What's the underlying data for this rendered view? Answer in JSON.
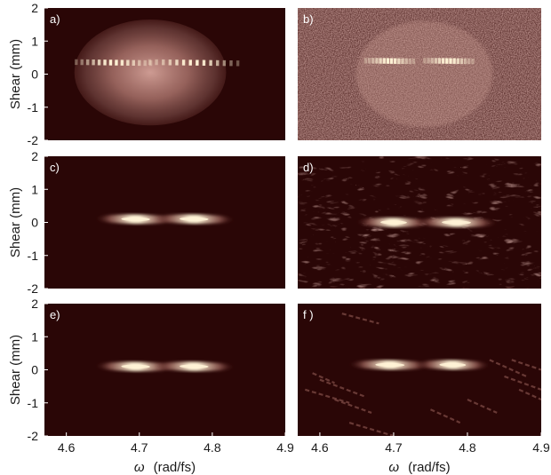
{
  "figure": {
    "ylabel": "Shear (mm)",
    "xlabel_symbol": "ω",
    "xlabel_units": "(rad/fs)",
    "colors": {
      "background": "#2a0606",
      "mid": "#8a4f4a",
      "peak": "#fff3d6",
      "noise": "#7a4845",
      "envelope": "#c8908a"
    }
  },
  "chart_data": [
    {
      "type": "heatmap",
      "panel_label": "a)",
      "description_kind": "ideal_with_envelope",
      "x_range": [
        4.57,
        4.9
      ],
      "y_range": [
        -2,
        2
      ],
      "xticks": [
        "4.6",
        "4.7",
        "4.8",
        "4.9"
      ],
      "yticks": [
        "2",
        "1",
        "0",
        "-1",
        "-2"
      ],
      "features": [
        {
          "x_center": 4.66,
          "y_center": 0.35,
          "slope_mm_per_radfs": -30,
          "extent_x": [
            4.61,
            4.72
          ],
          "fringed": true
        },
        {
          "x_center": 4.76,
          "y_center": 0.35,
          "slope_mm_per_radfs": -30,
          "extent_x": [
            4.71,
            4.84
          ],
          "fringed": true
        }
      ]
    },
    {
      "type": "heatmap",
      "panel_label": "b)",
      "description_kind": "noisy",
      "x_range": [
        4.57,
        4.9
      ],
      "y_range": [
        -2,
        2
      ],
      "xticks": [
        "4.6",
        "4.7",
        "4.8",
        "4.9"
      ],
      "yticks": [
        "2",
        "1",
        "0",
        "-1",
        "-2"
      ],
      "features": [
        {
          "x_center": 4.69,
          "y_center": 0.4,
          "slope_mm_per_radfs": -30,
          "extent_x": [
            4.66,
            4.73
          ],
          "fringed": true
        },
        {
          "x_center": 4.77,
          "y_center": 0.4,
          "slope_mm_per_radfs": -30,
          "extent_x": [
            4.74,
            4.81
          ],
          "fringed": true
        }
      ]
    },
    {
      "type": "heatmap",
      "panel_label": "c)",
      "description_kind": "reconstructed",
      "x_range": [
        4.57,
        4.9
      ],
      "y_range": [
        -2,
        2
      ],
      "xticks": [
        "4.6",
        "4.7",
        "4.8",
        "4.9"
      ],
      "yticks": [
        "2",
        "1",
        "0",
        "-1",
        "-2"
      ],
      "features": [
        {
          "x_center": 4.69,
          "y_center": 0.1,
          "slope_mm_per_radfs": -30,
          "extent_x": [
            4.64,
            4.75
          ],
          "fringed": false
        },
        {
          "x_center": 4.78,
          "y_center": 0.1,
          "slope_mm_per_radfs": -30,
          "extent_x": [
            4.72,
            4.83
          ],
          "fringed": false
        }
      ]
    },
    {
      "type": "heatmap",
      "panel_label": "d)",
      "description_kind": "reconstructed_noisy",
      "x_range": [
        4.57,
        4.9
      ],
      "y_range": [
        -2,
        2
      ],
      "xticks": [
        "4.6",
        "4.7",
        "4.8",
        "4.9"
      ],
      "yticks": [
        "2",
        "1",
        "0",
        "-1",
        "-2"
      ],
      "features": [
        {
          "x_center": 4.7,
          "y_center": 0.0,
          "slope_mm_per_radfs": -30,
          "extent_x": [
            4.65,
            4.75
          ],
          "fringed": false
        },
        {
          "x_center": 4.78,
          "y_center": 0.0,
          "slope_mm_per_radfs": -30,
          "extent_x": [
            4.73,
            4.84
          ],
          "fringed": false
        }
      ]
    },
    {
      "type": "heatmap",
      "panel_label": "e)",
      "description_kind": "reconstructed",
      "x_range": [
        4.57,
        4.9
      ],
      "y_range": [
        -2,
        2
      ],
      "xticks": [
        "4.6",
        "4.7",
        "4.8",
        "4.9"
      ],
      "yticks": [
        "2",
        "1",
        "0",
        "-1",
        "-2"
      ],
      "features": [
        {
          "x_center": 4.69,
          "y_center": 0.1,
          "slope_mm_per_radfs": -30,
          "extent_x": [
            4.64,
            4.75
          ],
          "fringed": false
        },
        {
          "x_center": 4.78,
          "y_center": 0.1,
          "slope_mm_per_radfs": -30,
          "extent_x": [
            4.72,
            4.83
          ],
          "fringed": false
        }
      ]
    },
    {
      "type": "heatmap",
      "panel_label": "f )",
      "description_kind": "reconstructed_artifacts",
      "x_range": [
        4.57,
        4.9
      ],
      "y_range": [
        -2,
        2
      ],
      "xticks": [
        "4.6",
        "4.7",
        "4.8",
        "4.9"
      ],
      "yticks": [
        "2",
        "1",
        "0",
        "-1",
        "-2"
      ],
      "features": [
        {
          "x_center": 4.69,
          "y_center": 0.15,
          "slope_mm_per_radfs": -30,
          "extent_x": [
            4.64,
            4.75
          ],
          "fringed": false
        },
        {
          "x_center": 4.78,
          "y_center": 0.15,
          "slope_mm_per_radfs": -30,
          "extent_x": [
            4.73,
            4.83
          ],
          "fringed": false
        }
      ]
    }
  ]
}
